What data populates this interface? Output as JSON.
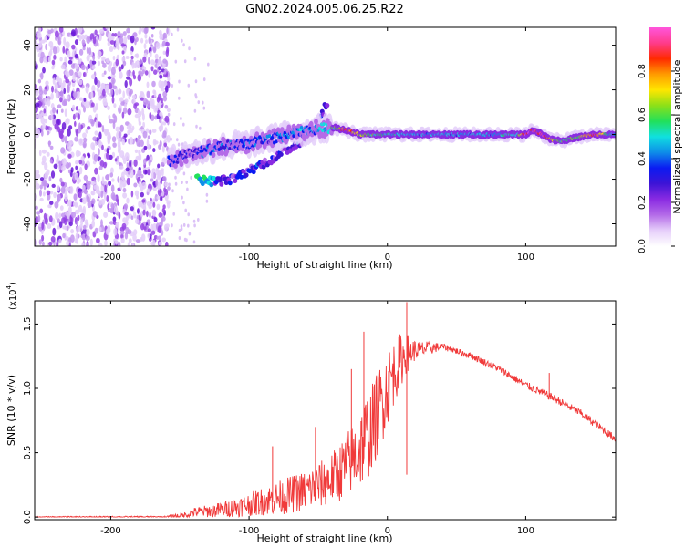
{
  "title": "GN02.2024.005.06.25.R22",
  "chart_data": [
    {
      "type": "heatmap",
      "xlabel": "Height of straight line (km)",
      "ylabel": "Frequency (Hz)",
      "xlim": [
        -255,
        165
      ],
      "ylim": [
        -50,
        48
      ],
      "x_ticks": [
        -200,
        -100,
        0,
        100
      ],
      "x_tick_labels": [
        "-200",
        "-100",
        "0",
        "100"
      ],
      "y_ticks": [
        -40,
        -20,
        0,
        20,
        40
      ],
      "y_tick_labels": [
        "-40",
        "-20",
        "0",
        "20",
        "40"
      ],
      "colorbar": {
        "label": "Normalized spectral amplitude",
        "range": [
          0,
          1
        ],
        "ticks": [
          0.0,
          0.2,
          0.4,
          0.6,
          0.8
        ],
        "tick_labels": [
          "0.0",
          "0.2",
          "0.4",
          "0.6",
          "0.8"
        ],
        "stops": [
          "#ffffff",
          "#e6cffa",
          "#b46be8",
          "#8a2be2",
          "#3d14d6",
          "#0b1bf2",
          "#0e8ee8",
          "#10e0e0",
          "#22e05a",
          "#8de018",
          "#ffe600",
          "#ff9a00",
          "#ff2a00",
          "#ff3c8c",
          "#ff55dc"
        ]
      },
      "ridge": {
        "x": [
          -158,
          -145,
          -130,
          -115,
          -100,
          -85,
          -70,
          -55,
          -45,
          -38,
          -30,
          -20,
          0,
          20,
          40,
          60,
          80,
          95,
          100,
          105,
          112,
          118,
          125,
          132,
          140,
          150,
          160,
          165
        ],
        "f": [
          -12,
          -9,
          -7,
          -5,
          -4,
          -2,
          0,
          2,
          3,
          3,
          2,
          0,
          0,
          0,
          0,
          0,
          0,
          0,
          0,
          2,
          0,
          -2,
          -3,
          -2,
          -1,
          0,
          0,
          0
        ],
        "amplitude": [
          0.35,
          0.3,
          0.35,
          0.35,
          0.35,
          0.35,
          0.4,
          0.4,
          0.45,
          0.6,
          0.9,
          0.65,
          0.5,
          0.45,
          0.45,
          0.45,
          0.45,
          0.55,
          0.95,
          0.9,
          0.95,
          0.75,
          0.6,
          0.55,
          0.65,
          0.9,
          0.5,
          0.5
        ]
      },
      "secondary_branch": {
        "x": [
          -138,
          -125,
          -112,
          -100,
          -90,
          -80,
          -70,
          -60,
          -50,
          -43
        ],
        "f": [
          -20,
          -21,
          -20,
          -16,
          -13,
          -10,
          -6,
          -2,
          5,
          15
        ]
      },
      "noise_region_x": [
        -255,
        -158
      ]
    },
    {
      "type": "line",
      "xlabel": "Height of straight line (km)",
      "ylabel": "SNR (10 * v/v)",
      "y_multiplier": "(x10",
      "y_multiplier_exp": "4",
      "y_multiplier_close": ")",
      "xlim": [
        -255,
        165
      ],
      "ylim": [
        -0.02,
        1.68
      ],
      "x_ticks": [
        -200,
        -100,
        0,
        100
      ],
      "x_tick_labels": [
        "-200",
        "-100",
        "0",
        "100"
      ],
      "y_ticks": [
        0.0,
        0.5,
        1.0,
        1.5
      ],
      "y_tick_labels": [
        "0.0",
        "0.5",
        "1.0",
        "1.5"
      ],
      "color": "#f03a3a",
      "envelope": {
        "x": [
          -255,
          -200,
          -160,
          -145,
          -140,
          -125,
          -110,
          -100,
          -80,
          -60,
          -45,
          -35,
          -25,
          -18,
          -10,
          -5,
          0,
          5,
          10,
          15,
          20,
          30,
          40,
          60,
          80,
          100,
          120,
          140,
          165
        ],
        "y": [
          0.0,
          0.0,
          0.0,
          0.01,
          0.03,
          0.04,
          0.06,
          0.08,
          0.12,
          0.17,
          0.23,
          0.3,
          0.4,
          0.5,
          0.65,
          0.8,
          0.95,
          1.08,
          1.18,
          1.25,
          1.28,
          1.3,
          1.32,
          1.25,
          1.15,
          1.02,
          0.92,
          0.8,
          0.6
        ]
      },
      "noise": {
        "x": [
          -255,
          -160,
          -145,
          -120,
          -100,
          -80,
          -60,
          -40,
          -25,
          -15,
          -5,
          0,
          10,
          20,
          40,
          60,
          100,
          140,
          165
        ],
        "amp": [
          0.005,
          0.007,
          0.03,
          0.06,
          0.09,
          0.13,
          0.16,
          0.2,
          0.28,
          0.35,
          0.33,
          0.3,
          0.2,
          0.08,
          0.025,
          0.025,
          0.03,
          0.03,
          0.03
        ]
      },
      "spikes": [
        {
          "x": 14,
          "y": 1.67
        },
        {
          "x": -17,
          "y": 1.44
        },
        {
          "x": -26,
          "y": 1.15
        },
        {
          "x": 9,
          "y": 1.42
        },
        {
          "x": -83,
          "y": 0.55
        },
        {
          "x": -52,
          "y": 0.7
        },
        {
          "x": 14,
          "y": 0.33
        },
        {
          "x": 117,
          "y": 1.12
        }
      ]
    }
  ]
}
